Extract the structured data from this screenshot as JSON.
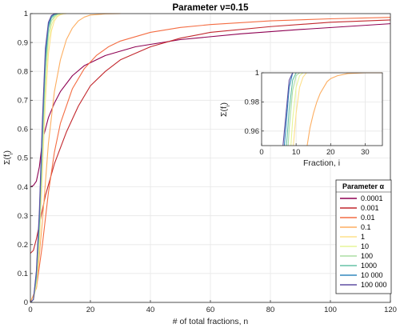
{
  "chart_data": [
    {
      "type": "line",
      "title": "Parameter  ν=0.15",
      "xlabel": "# of total fractions, n",
      "ylabel": "Σ(f_i)",
      "xlim": [
        0,
        120
      ],
      "ylim": [
        0,
        1
      ],
      "xticks": [
        0,
        20,
        40,
        60,
        80,
        100,
        120
      ],
      "yticks": [
        0,
        0.1,
        0.2,
        0.3,
        0.4,
        0.5,
        0.6,
        0.7,
        0.8,
        0.9,
        1
      ],
      "grid": true,
      "legend_title": "Parameter  α",
      "legend_position": "right",
      "series": [
        {
          "name": "0.0001",
          "color": "#8e0152",
          "x": [
            0,
            1,
            2,
            3,
            4,
            6,
            8,
            10,
            14,
            18,
            25,
            35,
            50,
            70,
            90,
            120
          ],
          "y": [
            0.4,
            0.405,
            0.42,
            0.47,
            0.56,
            0.64,
            0.69,
            0.73,
            0.785,
            0.82,
            0.855,
            0.885,
            0.91,
            0.93,
            0.945,
            0.965
          ]
        },
        {
          "name": "0.001",
          "color": "#c2272d",
          "x": [
            0,
            1,
            2,
            3,
            5,
            8,
            12,
            16,
            20,
            25,
            30,
            40,
            50,
            60,
            80,
            100,
            120
          ],
          "y": [
            0.17,
            0.18,
            0.22,
            0.27,
            0.37,
            0.48,
            0.59,
            0.68,
            0.75,
            0.8,
            0.84,
            0.885,
            0.915,
            0.935,
            0.955,
            0.97,
            0.978
          ]
        },
        {
          "name": "0.01",
          "color": "#f46d43",
          "x": [
            0,
            2,
            4,
            6,
            8,
            10,
            14,
            18,
            22,
            26,
            30,
            40,
            50,
            60,
            80,
            100,
            120
          ],
          "y": [
            0,
            0.05,
            0.2,
            0.38,
            0.52,
            0.62,
            0.74,
            0.81,
            0.855,
            0.885,
            0.905,
            0.935,
            0.952,
            0.962,
            0.975,
            0.982,
            0.987
          ]
        },
        {
          "name": "0.1",
          "color": "#fdae61",
          "x": [
            0,
            2,
            4,
            6,
            8,
            10,
            12,
            14,
            16,
            18,
            20,
            25,
            30
          ],
          "y": [
            0,
            0.05,
            0.28,
            0.55,
            0.73,
            0.84,
            0.91,
            0.95,
            0.975,
            0.988,
            0.995,
            0.999,
            1
          ]
        },
        {
          "name": "1",
          "color": "#fee08b",
          "x": [
            0,
            1,
            2,
            3,
            4,
            5,
            6,
            7,
            8,
            9,
            10,
            11,
            12
          ],
          "y": [
            0,
            0.01,
            0.06,
            0.2,
            0.45,
            0.7,
            0.86,
            0.94,
            0.975,
            0.99,
            0.996,
            0.999,
            1
          ]
        },
        {
          "name": "10",
          "color": "#e6f598",
          "x": [
            0,
            1,
            2,
            3,
            4,
            5,
            6,
            7,
            8,
            9,
            10,
            11
          ],
          "y": [
            0,
            0.01,
            0.07,
            0.23,
            0.5,
            0.75,
            0.9,
            0.96,
            0.985,
            0.995,
            0.999,
            1
          ]
        },
        {
          "name": "100",
          "color": "#abdda4",
          "x": [
            0,
            1,
            2,
            3,
            4,
            5,
            6,
            7,
            8,
            9,
            10
          ],
          "y": [
            0,
            0.01,
            0.08,
            0.26,
            0.54,
            0.8,
            0.93,
            0.975,
            0.99,
            0.998,
            1
          ]
        },
        {
          "name": "1000",
          "color": "#66c2a5",
          "x": [
            0,
            1,
            2,
            3,
            4,
            5,
            6,
            7,
            8,
            9,
            10
          ],
          "y": [
            0,
            0.01,
            0.09,
            0.28,
            0.58,
            0.83,
            0.95,
            0.985,
            0.995,
            0.999,
            1
          ]
        },
        {
          "name": "10 000",
          "color": "#3288bd",
          "x": [
            0,
            1,
            2,
            3,
            4,
            5,
            6,
            7,
            8,
            9
          ],
          "y": [
            0,
            0.01,
            0.1,
            0.3,
            0.61,
            0.86,
            0.96,
            0.99,
            0.998,
            1
          ]
        },
        {
          "name": "100 000",
          "color": "#5e4fa2",
          "x": [
            0,
            1,
            2,
            3,
            4,
            5,
            6,
            7,
            8,
            9
          ],
          "y": [
            0,
            0.01,
            0.11,
            0.32,
            0.63,
            0.88,
            0.97,
            0.993,
            0.999,
            1
          ]
        }
      ]
    },
    {
      "type": "line",
      "title": "",
      "xlabel": "Fraction, i",
      "ylabel": "Σ(f_i)",
      "xlim": [
        0,
        35
      ],
      "ylim": [
        0.95,
        1
      ],
      "xticks": [
        0,
        10,
        20,
        30
      ],
      "yticks": [
        0.96,
        0.98,
        1
      ],
      "grid": true,
      "series": [
        {
          "name": "0.1",
          "color": "#fdae61",
          "x": [
            13.2,
            14,
            15,
            16,
            17,
            18,
            19,
            20,
            22,
            25,
            30,
            35
          ],
          "y": [
            0.95,
            0.962,
            0.972,
            0.98,
            0.986,
            0.99,
            0.994,
            0.996,
            0.998,
            0.9995,
            1,
            1
          ]
        },
        {
          "name": "1",
          "color": "#fee08b",
          "x": [
            9.2,
            10,
            11,
            12,
            13
          ],
          "y": [
            0.95,
            0.972,
            0.99,
            0.997,
            1
          ]
        },
        {
          "name": "10",
          "color": "#e6f598",
          "x": [
            8.5,
            9,
            10,
            11,
            12
          ],
          "y": [
            0.95,
            0.968,
            0.99,
            0.998,
            1
          ]
        },
        {
          "name": "100",
          "color": "#abdda4",
          "x": [
            7.7,
            8,
            9,
            10,
            11
          ],
          "y": [
            0.95,
            0.962,
            0.988,
            0.998,
            1
          ]
        },
        {
          "name": "1000",
          "color": "#66c2a5",
          "x": [
            7.2,
            8,
            9,
            10
          ],
          "y": [
            0.95,
            0.975,
            0.995,
            1
          ]
        },
        {
          "name": "10 000",
          "color": "#3288bd",
          "x": [
            6.6,
            7,
            8,
            9
          ],
          "y": [
            0.95,
            0.962,
            0.99,
            1
          ]
        },
        {
          "name": "100 000",
          "color": "#5e4fa2",
          "x": [
            6.2,
            7,
            8,
            9
          ],
          "y": [
            0.95,
            0.97,
            0.995,
            1
          ]
        }
      ]
    }
  ]
}
